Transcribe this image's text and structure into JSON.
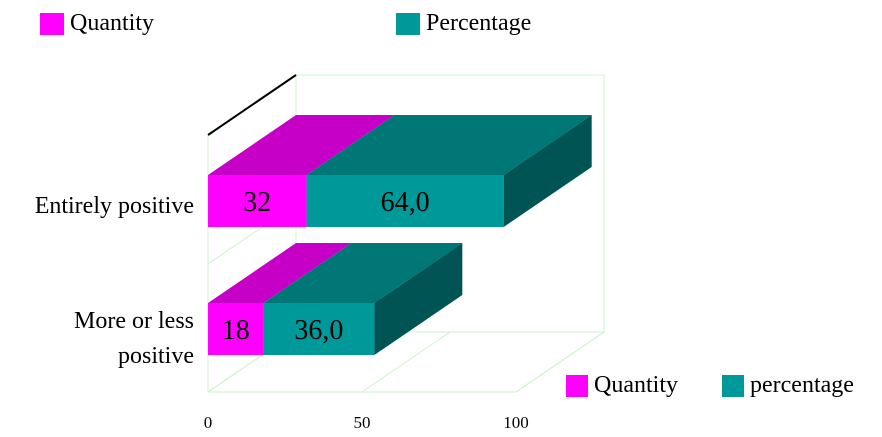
{
  "chart_data": {
    "type": "bar",
    "orientation": "horizontal",
    "stacked": true,
    "three_d": true,
    "categories": [
      "Entirely positive",
      "More or less positive"
    ],
    "series": [
      {
        "name": "Quantity",
        "values": [
          32,
          18
        ],
        "labels": [
          "32",
          "18"
        ],
        "color": "#ff00ff"
      },
      {
        "name": "Percentage",
        "values": [
          64.0,
          36.0
        ],
        "labels": [
          "64,0",
          "36,0"
        ],
        "color": "#009999"
      }
    ],
    "xlim": [
      0,
      100
    ],
    "xticks": [
      0,
      50,
      100
    ],
    "xtick_labels": [
      "0",
      "50",
      "100"
    ],
    "grid": true,
    "top_legend": [
      {
        "label": "Quantity",
        "color": "#ff00ff"
      },
      {
        "label": "Percentage",
        "color": "#009999"
      }
    ],
    "bottom_legend": [
      {
        "label": "Quantity",
        "color": "#ff00ff"
      },
      {
        "label": "percentage",
        "color": "#009999"
      }
    ],
    "category_label_lines": [
      [
        "Entirely positive"
      ],
      [
        "More or less",
        "positive"
      ]
    ]
  }
}
